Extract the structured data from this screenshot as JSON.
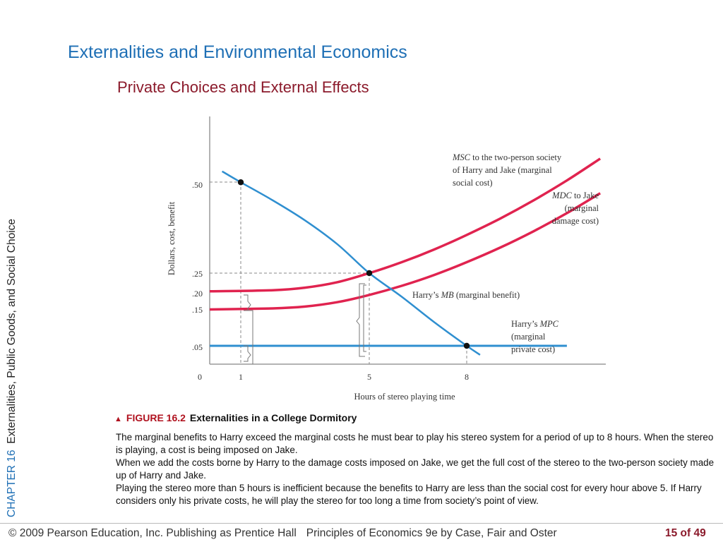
{
  "slide": {
    "title": "Externalities and Environmental Economics",
    "subtitle": "Private Choices and External Effects",
    "side_label_chapter": "CHAPTER 16",
    "side_label_title": "Externalities, Public Goods, and Social Choice"
  },
  "chart_data": {
    "type": "line",
    "xlabel": "Hours of stereo playing time",
    "ylabel": "Dollars, cost, benefit",
    "xlim": [
      0,
      15
    ],
    "ylim": [
      0,
      0.7
    ],
    "x_ticks": [
      "0",
      "1",
      "5",
      "8"
    ],
    "y_ticks": [
      ".05",
      ".15",
      ".20",
      ".25",
      ".50"
    ],
    "series": [
      {
        "name": "MSC",
        "color": "#e0234f",
        "x": [
          0,
          2,
          3,
          4,
          5,
          6,
          7,
          8,
          9,
          10,
          11,
          12
        ],
        "y": [
          0.2,
          0.203,
          0.21,
          0.225,
          0.25,
          0.28,
          0.315,
          0.355,
          0.4,
          0.45,
          0.505,
          0.565
        ]
      },
      {
        "name": "MDC",
        "color": "#e0234f",
        "x": [
          0,
          2,
          3,
          4,
          5,
          6,
          7,
          8,
          9,
          10,
          11,
          12
        ],
        "y": [
          0.15,
          0.153,
          0.158,
          0.17,
          0.19,
          0.215,
          0.245,
          0.28,
          0.32,
          0.365,
          0.415,
          0.47
        ]
      },
      {
        "name": "MB",
        "color": "#2f8fd0",
        "x": [
          0.4,
          1,
          2,
          3,
          4,
          5,
          6,
          7,
          8,
          8.4
        ],
        "y": [
          0.53,
          0.5,
          0.45,
          0.395,
          0.33,
          0.25,
          0.185,
          0.115,
          0.05,
          0.025
        ]
      },
      {
        "name": "MPC",
        "color": "#2f8fd0",
        "x": [
          0,
          11
        ],
        "y": [
          0.05,
          0.05
        ]
      }
    ],
    "points": [
      {
        "x": 1,
        "y": 0.5
      },
      {
        "x": 5,
        "y": 0.25
      },
      {
        "x": 8,
        "y": 0.05
      }
    ],
    "annotations": {
      "msc_label": {
        "italic": "MSC",
        "lines": [
          " to the two-person society",
          "of Harry and Jake (marginal",
          "social cost)"
        ]
      },
      "mdc_label": {
        "italic": "MDC",
        "lines": [
          " to Jake",
          "(marginal",
          "damage cost)"
        ]
      },
      "mb_label": {
        "prefix": "Harry’s ",
        "italic": "MB",
        "suffix": " (marginal benefit)"
      },
      "mpc_label": {
        "prefix": "Harry’s ",
        "italic": "MPC",
        "lines": [
          "(marginal",
          "private cost)"
        ]
      }
    }
  },
  "figure": {
    "number": "FIGURE 16.2",
    "title": "Externalities in a College Dormitory",
    "paragraphs": [
      "The marginal benefits to Harry exceed the marginal costs he must bear to play his stereo system for a period of up to 8 hours.   When the stereo is playing, a cost is being imposed on Jake.",
      "When we add the costs borne by Harry to the damage costs imposed on Jake, we get the full cost of the stereo to the two-person society made up of Harry and Jake.",
      "Playing the stereo more than 5 hours is inefficient because the benefits to Harry are less than the social cost for every hour above 5. If Harry considers only his private costs, he will play the stereo for too long a time from society’s point of view."
    ]
  },
  "footer": {
    "copyright": "© 2009 Pearson Education, Inc. Publishing as Prentice Hall",
    "book": "Principles of Economics 9e by Case, Fair and Oster",
    "page": "15 of 49"
  }
}
